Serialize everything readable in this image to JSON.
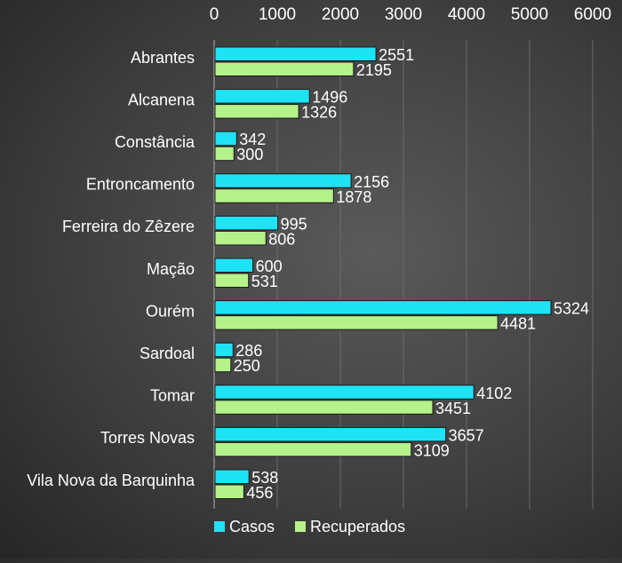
{
  "chart_data": {
    "type": "bar",
    "orientation": "horizontal",
    "title": "",
    "xlabel": "",
    "ylabel": "",
    "xlim": [
      0,
      6000
    ],
    "x_ticks": [
      "0",
      "1000",
      "2000",
      "3000",
      "4000",
      "5000",
      "6000"
    ],
    "x_axis_position": "top",
    "grid": true,
    "legend_position": "bottom-left",
    "categories": [
      "Abrantes",
      "Alcanena",
      "Constância",
      "Entroncamento",
      "Ferreira do Zêzere",
      "Mação",
      "Ourém",
      "Sardoal",
      "Tomar",
      "Torres Novas",
      "Vila Nova da Barquinha"
    ],
    "series": [
      {
        "name": "Casos",
        "color": "#1ee3f5",
        "values": [
          2551,
          1496,
          342,
          2156,
          995,
          600,
          5324,
          286,
          4102,
          3657,
          538
        ]
      },
      {
        "name": "Recuperados",
        "color": "#b6f28a",
        "values": [
          2195,
          1326,
          300,
          1878,
          806,
          531,
          4481,
          250,
          3451,
          3109,
          456
        ]
      }
    ]
  }
}
